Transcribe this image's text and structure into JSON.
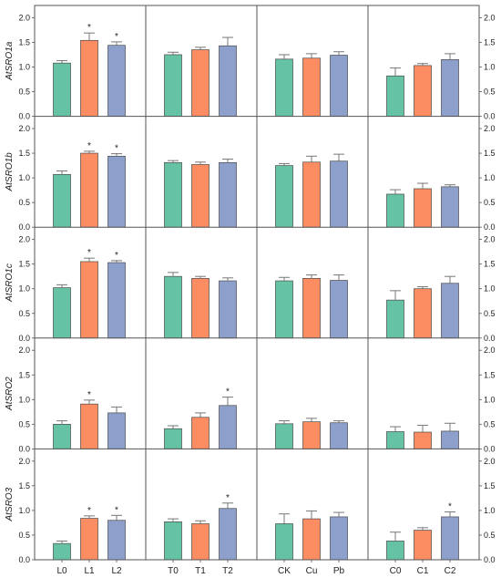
{
  "colors": {
    "series1": "#66c2a5",
    "series2": "#fc8d62",
    "series3": "#8da0cb",
    "frame": "#555555",
    "errorbar": "#777777"
  },
  "chart_data": {
    "type": "bar",
    "ylim": [
      0,
      2.1
    ],
    "yticks": [
      "0.0",
      "0.5",
      "1.0",
      "1.5",
      "2.0"
    ],
    "ytick_values": [
      0,
      0.5,
      1.0,
      1.5,
      2.0
    ],
    "groups": [
      {
        "categories": [
          "L0",
          "L1",
          "L2"
        ]
      },
      {
        "categories": [
          "T0",
          "T1",
          "T2"
        ]
      },
      {
        "categories": [
          "CK",
          "Cu",
          "Pb"
        ]
      },
      {
        "categories": [
          "C0",
          "C1",
          "C2"
        ]
      }
    ],
    "genes": [
      {
        "label": "AtSRO1a",
        "values": [
          [
            1.08,
            1.54,
            1.44
          ],
          [
            1.25,
            1.35,
            1.43
          ],
          [
            1.16,
            1.18,
            1.24
          ],
          [
            0.82,
            1.03,
            1.15
          ]
        ],
        "errors": [
          [
            0.05,
            0.15,
            0.07
          ],
          [
            0.05,
            0.05,
            0.17
          ],
          [
            0.09,
            0.09,
            0.07
          ],
          [
            0.16,
            0.04,
            0.12
          ]
        ],
        "marks": [
          [
            "",
            "*",
            "*"
          ],
          [
            "",
            "",
            ""
          ],
          [
            "",
            "",
            ""
          ],
          [
            "",
            "",
            ""
          ]
        ]
      },
      {
        "label": "AtSRO1b",
        "values": [
          [
            1.07,
            1.5,
            1.44
          ],
          [
            1.31,
            1.27,
            1.31
          ],
          [
            1.25,
            1.32,
            1.34
          ],
          [
            0.67,
            0.78,
            0.82
          ]
        ],
        "errors": [
          [
            0.07,
            0.04,
            0.05
          ],
          [
            0.04,
            0.05,
            0.07
          ],
          [
            0.04,
            0.12,
            0.14
          ],
          [
            0.09,
            0.11,
            0.04
          ]
        ],
        "marks": [
          [
            "",
            "*",
            "*"
          ],
          [
            "",
            "",
            ""
          ],
          [
            "",
            "",
            ""
          ],
          [
            "",
            "",
            ""
          ]
        ]
      },
      {
        "label": "AtSRO1c",
        "values": [
          [
            1.02,
            1.55,
            1.53
          ],
          [
            1.25,
            1.21,
            1.16
          ],
          [
            1.16,
            1.21,
            1.17
          ],
          [
            0.77,
            1.0,
            1.11
          ]
        ],
        "errors": [
          [
            0.06,
            0.07,
            0.04
          ],
          [
            0.08,
            0.04,
            0.06
          ],
          [
            0.07,
            0.07,
            0.11
          ],
          [
            0.19,
            0.04,
            0.14
          ]
        ],
        "marks": [
          [
            "",
            "*",
            "*"
          ],
          [
            "",
            "",
            ""
          ],
          [
            "",
            "",
            ""
          ],
          [
            "",
            "",
            ""
          ]
        ]
      },
      {
        "label": "AtSRO2",
        "values": [
          [
            0.5,
            0.91,
            0.73
          ],
          [
            0.41,
            0.64,
            0.88
          ],
          [
            0.51,
            0.55,
            0.53
          ],
          [
            0.35,
            0.34,
            0.36
          ]
        ],
        "errors": [
          [
            0.07,
            0.08,
            0.12
          ],
          [
            0.06,
            0.09,
            0.17
          ],
          [
            0.06,
            0.07,
            0.04
          ],
          [
            0.1,
            0.14,
            0.16
          ]
        ],
        "marks": [
          [
            "",
            "*",
            ""
          ],
          [
            "",
            "",
            "*"
          ],
          [
            "",
            "",
            ""
          ],
          [
            "",
            "",
            ""
          ]
        ]
      },
      {
        "label": "AtSRO3",
        "values": [
          [
            0.33,
            0.84,
            0.8
          ],
          [
            0.77,
            0.73,
            1.04
          ],
          [
            0.73,
            0.83,
            0.87
          ],
          [
            0.38,
            0.6,
            0.87
          ]
        ],
        "errors": [
          [
            0.05,
            0.05,
            0.1
          ],
          [
            0.06,
            0.06,
            0.11
          ],
          [
            0.2,
            0.16,
            0.09
          ],
          [
            0.18,
            0.05,
            0.1
          ]
        ],
        "marks": [
          [
            "",
            "*",
            "*"
          ],
          [
            "",
            "",
            "*"
          ],
          [
            "",
            "",
            ""
          ],
          [
            "",
            "",
            "*"
          ]
        ]
      }
    ]
  }
}
